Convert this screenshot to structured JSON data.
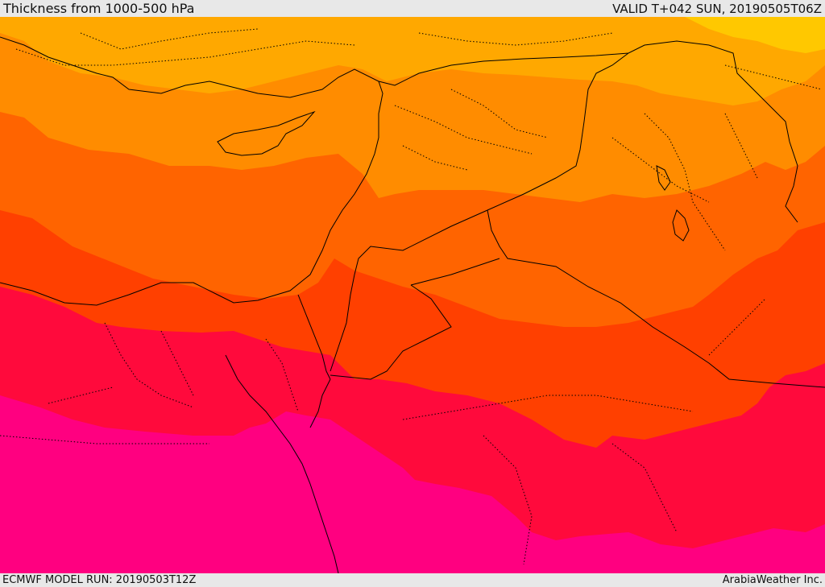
{
  "header": {
    "title": "Thickness from 1000-500 hPa",
    "valid_time": "VALID T+042 SUN, 20190505T06Z"
  },
  "footer": {
    "model_run": "ECMWF MODEL RUN: 20190503T12Z",
    "credit": "ArabiaWeather Inc."
  },
  "map": {
    "region": "Eastern Mediterranean / Levant / Egypt / Arabia",
    "colors": {
      "band_yellow": "#ffc800",
      "band_light_orange": "#ffa800",
      "band_orange": "#ff8c00",
      "band_dark_orange": "#ff6400",
      "band_red_orange": "#ff4000",
      "band_red": "#ff0a3c",
      "band_magenta": "#ff0080",
      "borders": "#000000"
    }
  }
}
